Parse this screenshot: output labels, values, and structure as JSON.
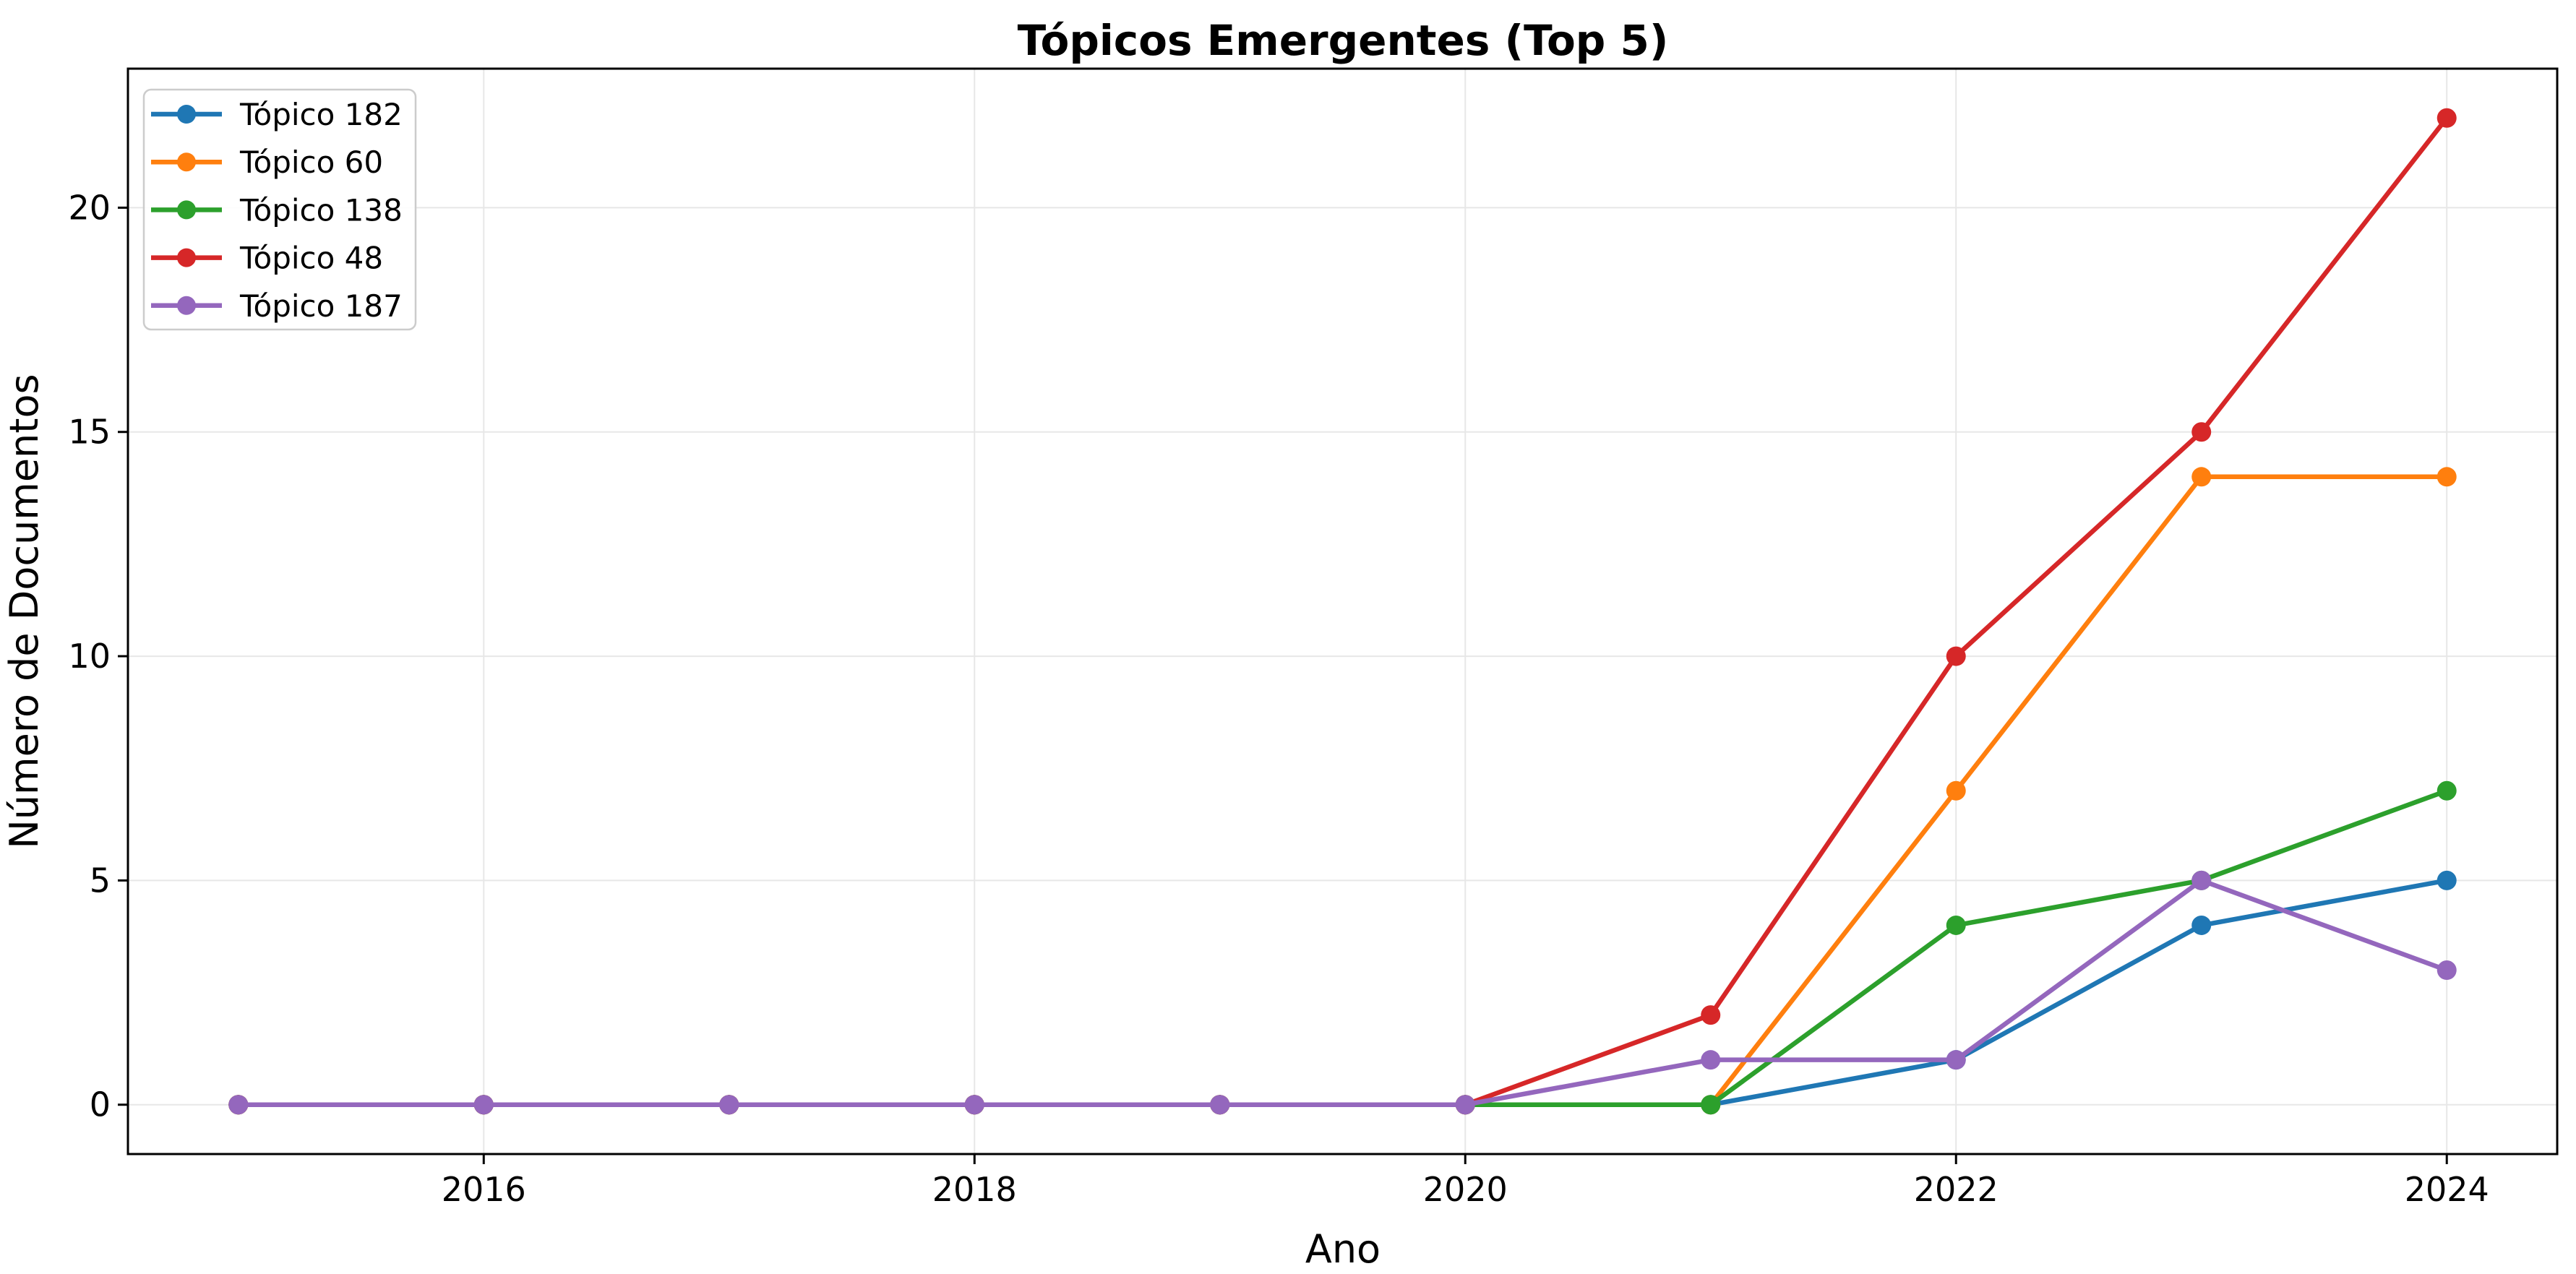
{
  "chart_data": {
    "type": "line",
    "title": "Tópicos Emergentes (Top 5)",
    "xlabel": "Ano",
    "ylabel": "Número de Documentos",
    "x": [
      2015,
      2016,
      2017,
      2018,
      2019,
      2020,
      2021,
      2022,
      2023,
      2024
    ],
    "series": [
      {
        "name": "Tópico 182",
        "color": "#1f77b4",
        "values": [
          0,
          0,
          0,
          0,
          0,
          0,
          0,
          1,
          4,
          5
        ]
      },
      {
        "name": "Tópico 60",
        "color": "#ff7f0e",
        "values": [
          0,
          0,
          0,
          0,
          0,
          0,
          0,
          7,
          14,
          14
        ]
      },
      {
        "name": "Tópico 138",
        "color": "#2ca02c",
        "values": [
          0,
          0,
          0,
          0,
          0,
          0,
          0,
          4,
          5,
          7
        ]
      },
      {
        "name": "Tópico 48",
        "color": "#d62728",
        "values": [
          0,
          0,
          0,
          0,
          0,
          0,
          2,
          10,
          15,
          22
        ]
      },
      {
        "name": "Tópico 187",
        "color": "#9467bd",
        "values": [
          0,
          0,
          0,
          0,
          0,
          0,
          1,
          1,
          5,
          3
        ]
      }
    ],
    "xticks": [
      2016,
      2018,
      2020,
      2022,
      2024
    ],
    "yticks": [
      0,
      5,
      10,
      15,
      20
    ],
    "xlim": [
      2014.55,
      2024.45
    ],
    "ylim": [
      -1.1,
      23.1
    ],
    "grid": true,
    "legend_position": "upper-left",
    "colors": {
      "grid": "#e7e7e7",
      "spine": "#000000",
      "text": "#000000",
      "legend_border": "#cccccc",
      "legend_background": "#ffffff"
    }
  }
}
